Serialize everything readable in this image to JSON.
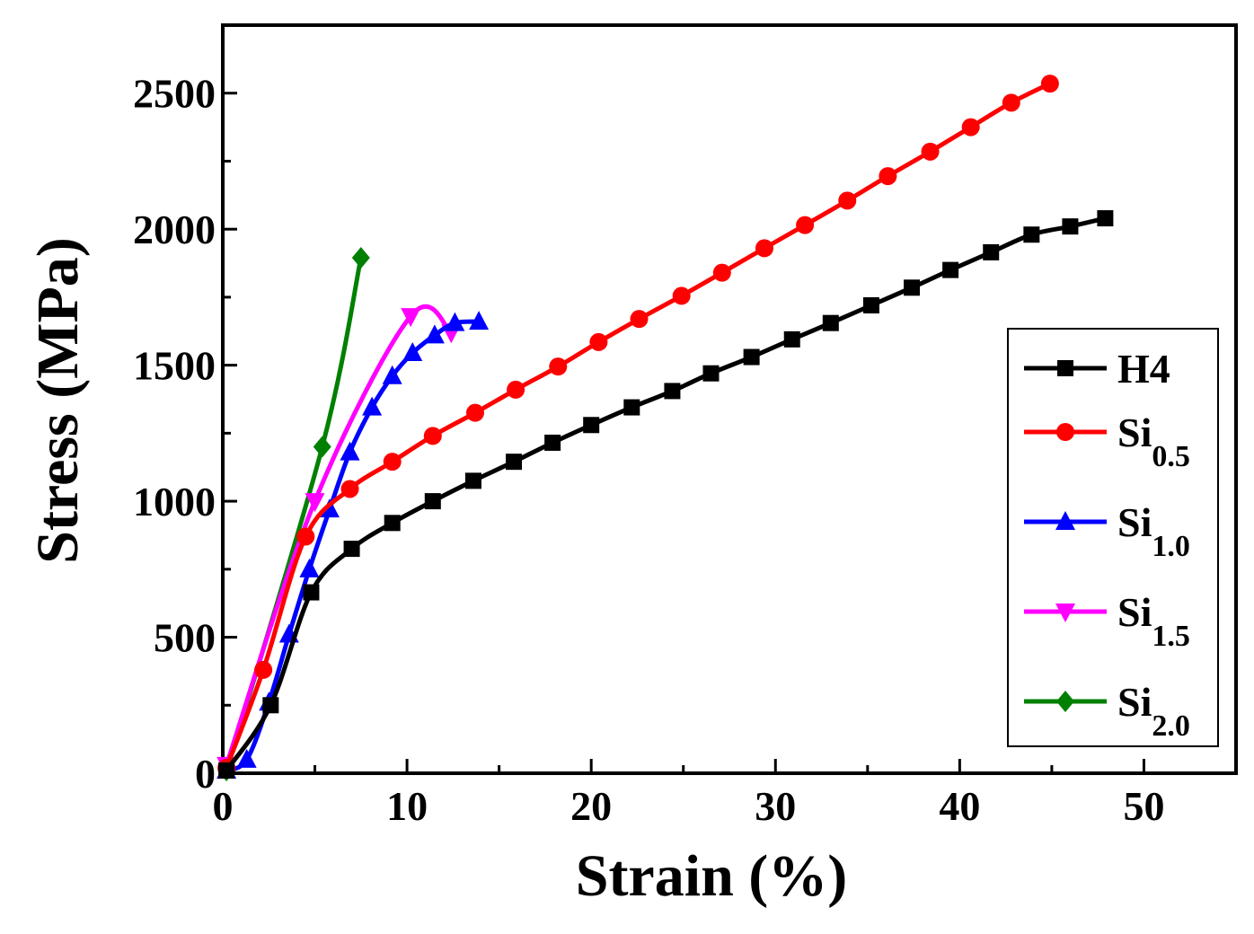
{
  "chart_data": {
    "type": "line",
    "title": "",
    "xlabel": "Strain (%)",
    "ylabel": "Stress (MPa)",
    "xlim": [
      0,
      55
    ],
    "ylim": [
      0,
      2750
    ],
    "xticks": [
      0,
      10,
      20,
      30,
      40,
      50
    ],
    "yticks": [
      0,
      500,
      1000,
      1500,
      2000,
      2500
    ],
    "grid": false,
    "legend_position": "bottom-right",
    "series": [
      {
        "name": "H4",
        "name_base": "H4",
        "name_sub": "",
        "color": "#000000",
        "marker": "square",
        "x": [
          0.2,
          2.6,
          4.8,
          7.0,
          9.2,
          11.4,
          13.6,
          15.8,
          17.9,
          20.0,
          22.2,
          24.4,
          26.5,
          28.7,
          30.9,
          33.0,
          35.2,
          37.4,
          39.5,
          41.7,
          43.9,
          46.0,
          47.9
        ],
        "y": [
          10,
          250,
          665,
          825,
          920,
          1000,
          1075,
          1145,
          1215,
          1280,
          1345,
          1405,
          1470,
          1530,
          1595,
          1655,
          1720,
          1785,
          1850,
          1915,
          1980,
          2010,
          2040
        ]
      },
      {
        "name": "Si0.5",
        "name_base": "Si",
        "name_sub": "0.5",
        "color": "#ff0000",
        "marker": "circle",
        "x": [
          0.2,
          2.2,
          4.5,
          6.9,
          9.2,
          11.4,
          13.7,
          15.9,
          18.2,
          20.4,
          22.6,
          24.9,
          27.1,
          29.4,
          31.6,
          33.9,
          36.1,
          38.4,
          40.6,
          42.8,
          44.9
        ],
        "y": [
          20,
          380,
          870,
          1045,
          1145,
          1240,
          1325,
          1410,
          1495,
          1585,
          1670,
          1755,
          1840,
          1930,
          2015,
          2105,
          2195,
          2285,
          2375,
          2465,
          2535
        ]
      },
      {
        "name": "Si1.0",
        "name_base": "Si",
        "name_sub": "1.0",
        "color": "#0000ff",
        "marker": "triangle-up",
        "x": [
          0.2,
          1.3,
          2.5,
          3.6,
          4.7,
          5.8,
          6.9,
          8.1,
          9.2,
          10.3,
          11.5,
          12.6,
          13.9
        ],
        "y": [
          10,
          50,
          260,
          510,
          750,
          970,
          1180,
          1345,
          1460,
          1545,
          1610,
          1655,
          1660
        ]
      },
      {
        "name": "Si1.5",
        "name_base": "Si",
        "name_sub": "1.5",
        "color": "#ff00ff",
        "marker": "triangle-down",
        "x": [
          0.2,
          5.0,
          10.2,
          12.4
        ],
        "y": [
          30,
          1000,
          1680,
          1620
        ]
      },
      {
        "name": "Si2.0",
        "name_base": "Si",
        "name_sub": "2.0",
        "color": "#008000",
        "marker": "diamond",
        "x": [
          0.2,
          5.4,
          7.5
        ],
        "y": [
          10,
          1200,
          1895
        ]
      }
    ]
  }
}
